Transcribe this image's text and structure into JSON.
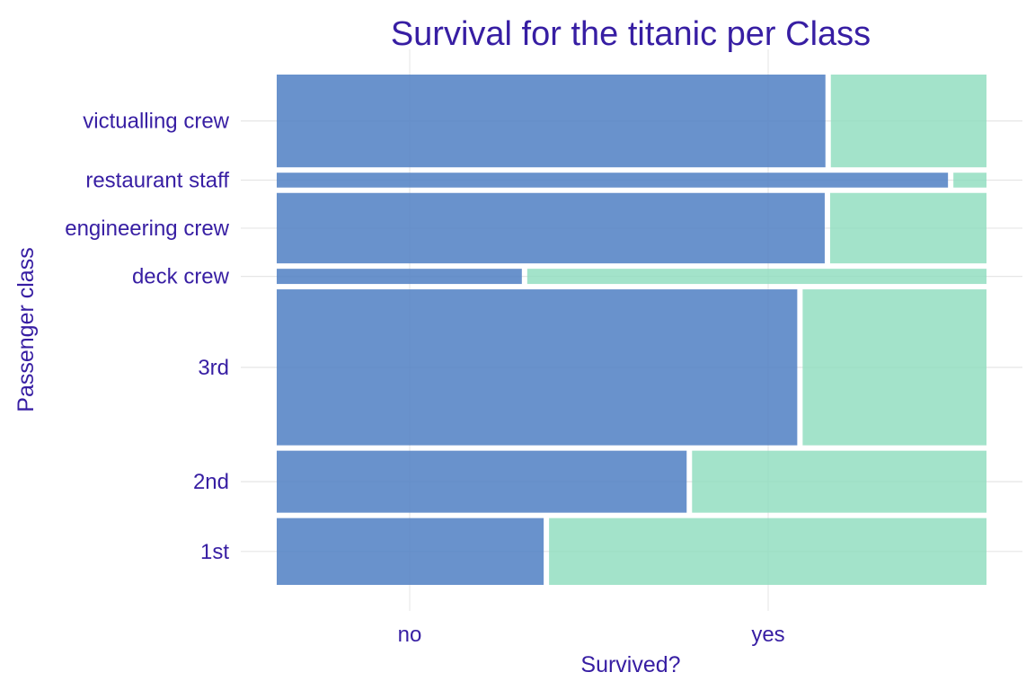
{
  "chart_data": {
    "type": "mosaic",
    "title": "Survival for the titanic per Class",
    "xlabel": "Survived?",
    "ylabel": "Passenger class",
    "x_categories": [
      "no",
      "yes"
    ],
    "categories": [
      "1st",
      "2nd",
      "3rd",
      "deck crew",
      "engineering crew",
      "restaurant staff",
      "victualling crew"
    ],
    "row_share": [
      0.0932,
      0.0865,
      0.2176,
      0.0212,
      0.0983,
      0.0207,
      0.1294
    ],
    "series": [
      {
        "name": "no",
        "values": [
          0.379,
          0.582,
          0.739,
          0.348,
          0.778,
          0.953,
          0.779
        ]
      },
      {
        "name": "yes",
        "values": [
          0.621,
          0.418,
          0.261,
          0.652,
          0.222,
          0.047,
          0.221
        ]
      }
    ],
    "colors": {
      "no": "#4f7fc3",
      "yes": "#8cdcbd",
      "text": "#371ea3",
      "grid": "#e6e6e6"
    },
    "grid": true,
    "legend": "none"
  }
}
